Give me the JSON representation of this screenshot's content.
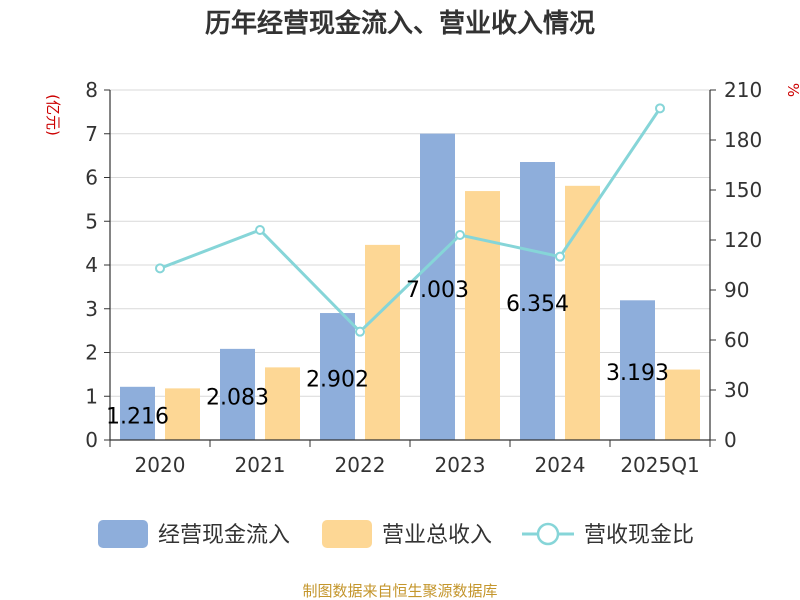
{
  "chart_data": {
    "type": "bar",
    "title": "历年经营现金流入、营业收入情况",
    "categories": [
      "2020",
      "2021",
      "2022",
      "2023",
      "2024",
      "2025Q1"
    ],
    "series": [
      {
        "name": "经营现金流入",
        "type": "bar",
        "axis": "left",
        "color": "#8eaedb",
        "values": [
          1.216,
          2.083,
          2.902,
          7.003,
          6.354,
          3.193
        ]
      },
      {
        "name": "营业总收入",
        "type": "bar",
        "axis": "left",
        "color": "#fdd795",
        "values": [
          1.18,
          1.66,
          4.46,
          5.69,
          5.81,
          1.61
        ]
      },
      {
        "name": "营收现金比",
        "type": "line",
        "axis": "right",
        "color": "#86d5d8",
        "values": [
          103,
          126,
          65,
          123,
          110,
          199
        ]
      }
    ],
    "data_labels": [
      "1.216",
      "2.083",
      "2.902",
      "7.003",
      "6.354",
      "3.193"
    ],
    "y_left": {
      "unit": "(亿元)",
      "ylim": [
        0,
        8
      ],
      "ticks": [
        "0",
        "1",
        "2",
        "3",
        "4",
        "5",
        "6",
        "7",
        "8"
      ]
    },
    "y_right": {
      "unit": "%",
      "ylim": [
        0,
        210
      ],
      "ticks": [
        "0",
        "30",
        "60",
        "90",
        "120",
        "150",
        "180",
        "210"
      ]
    },
    "grid": true,
    "legend_position": "bottom",
    "source": "制图数据来自恒生聚源数据库"
  }
}
